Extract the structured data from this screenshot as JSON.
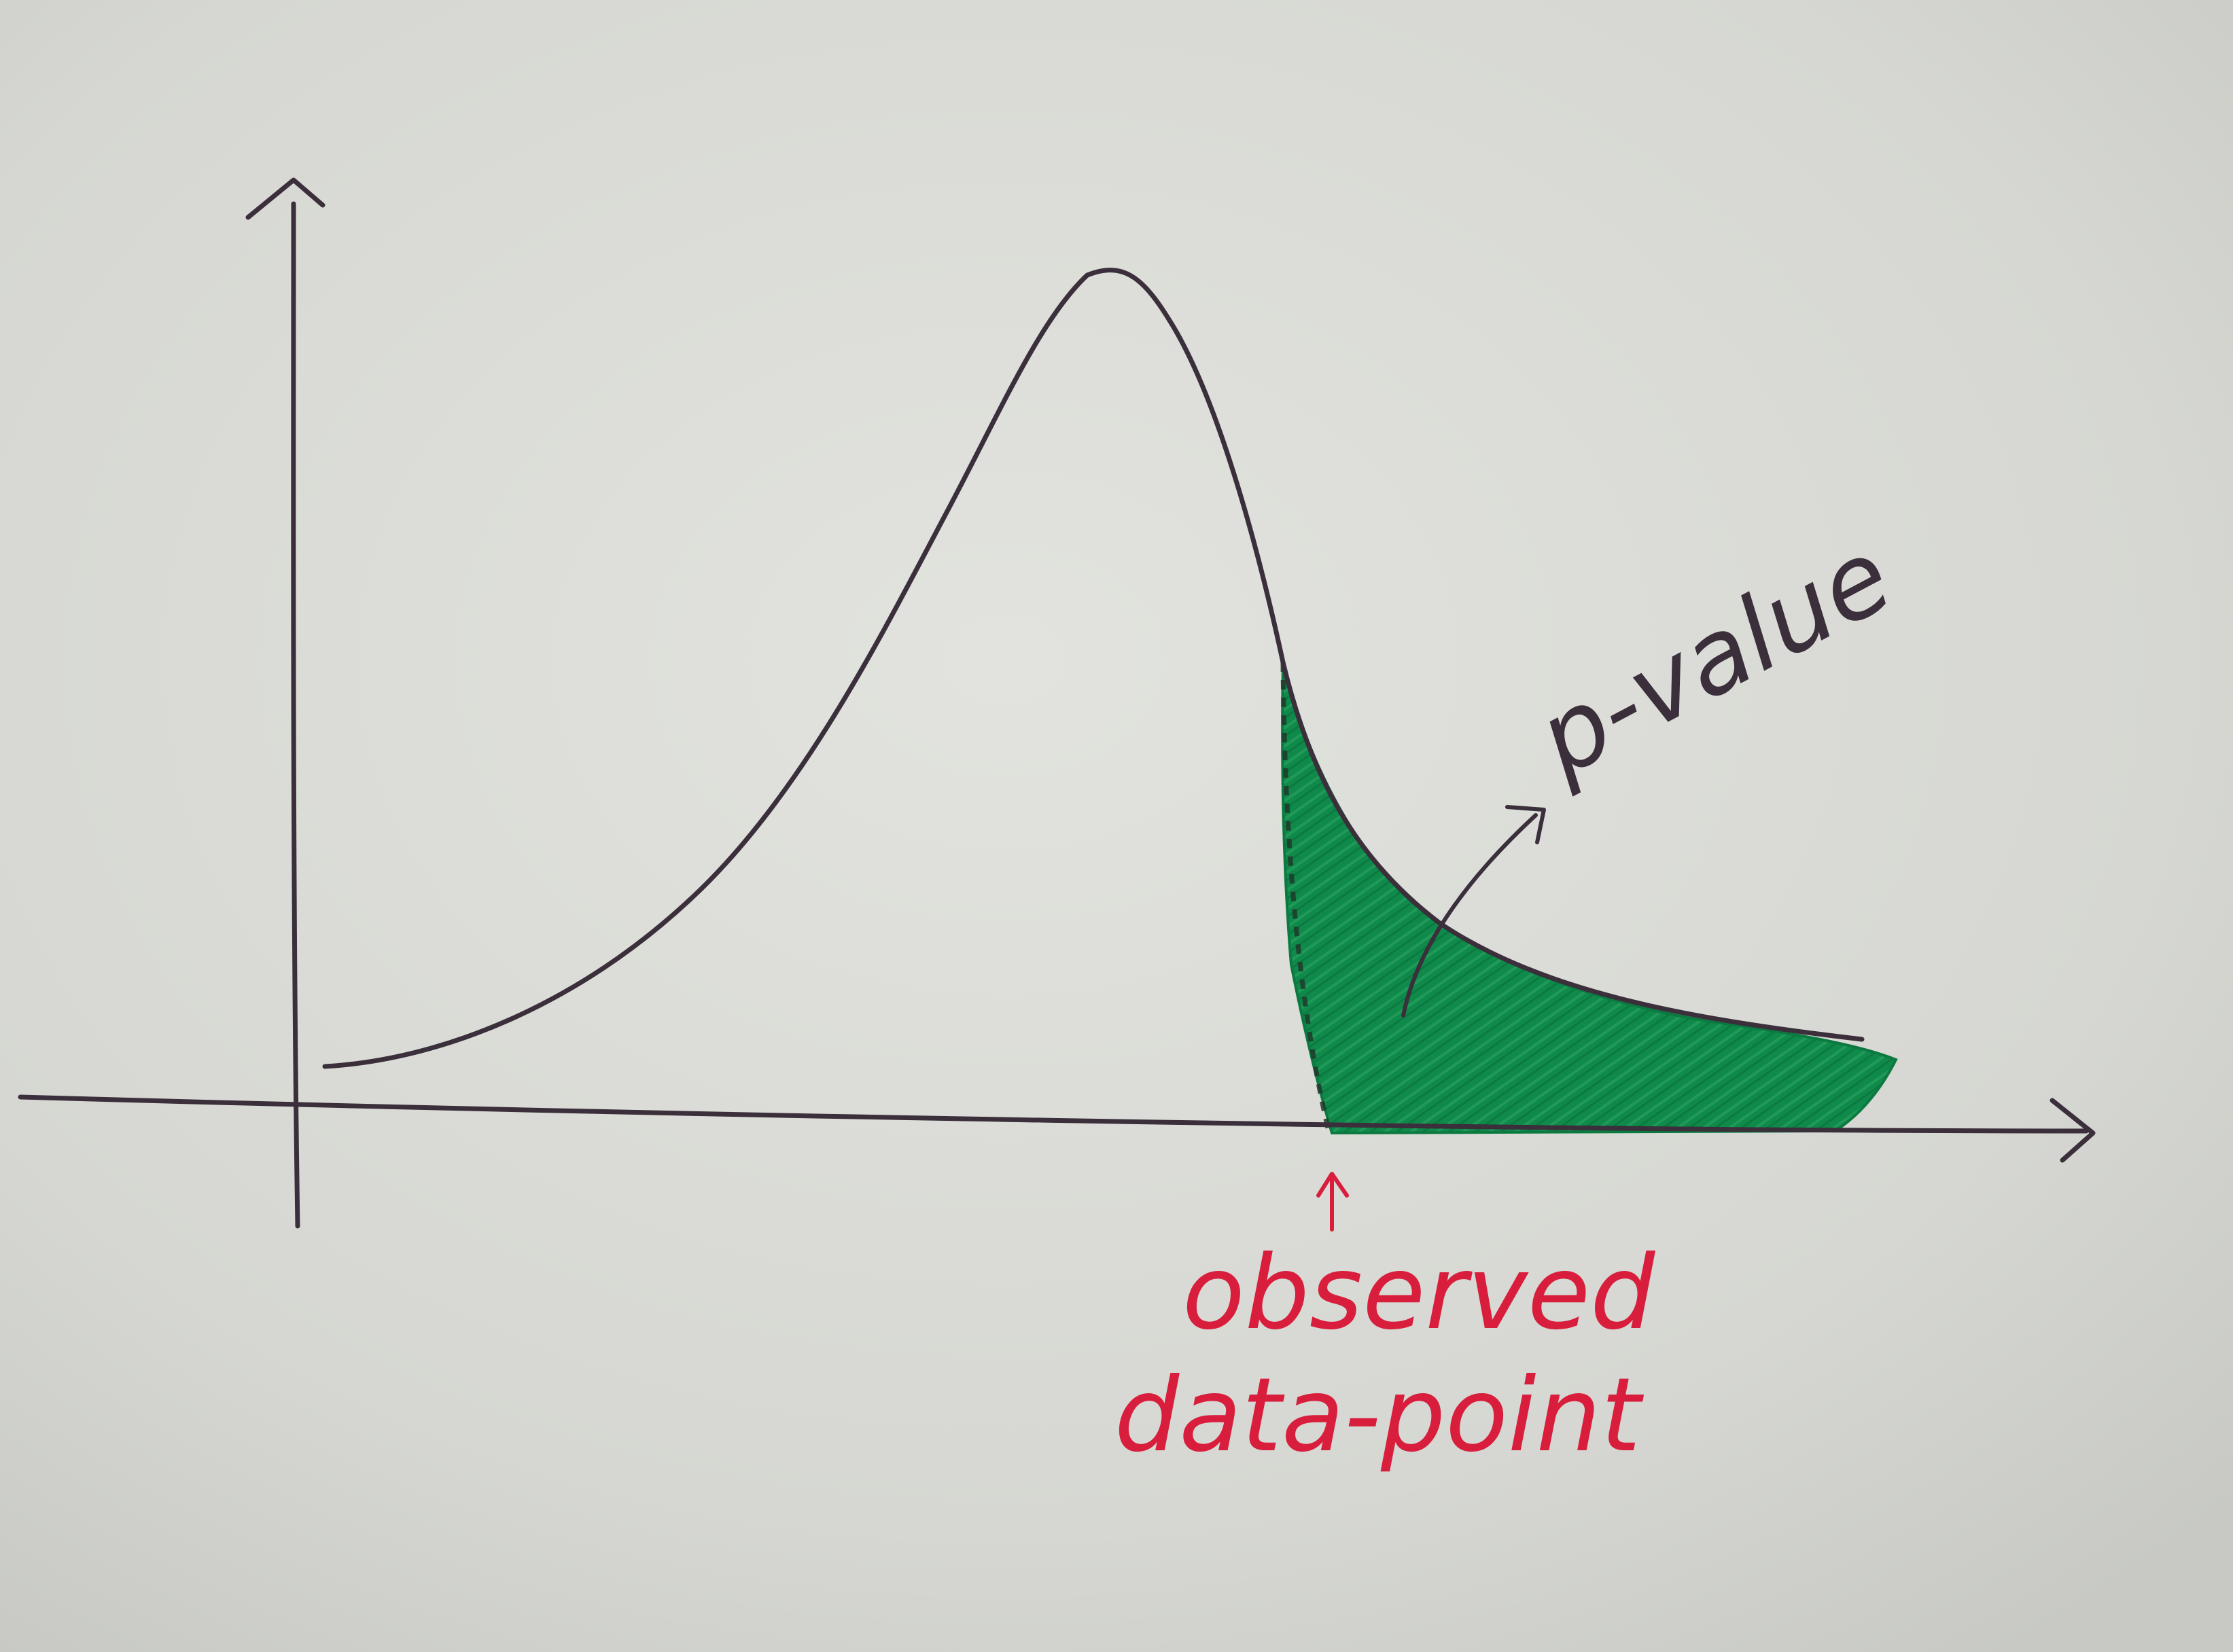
{
  "annotations": {
    "p_value": "p-value",
    "observed_line1": "observed",
    "observed_line2": "data-point"
  },
  "colors": {
    "paper": "#dcddd8",
    "ink": "#3a2f3a",
    "shade": "#0f8a4a",
    "red_ink": "#d81e3c"
  },
  "icons": [
    "x-axis-arrow-icon",
    "y-axis-arrow-icon",
    "observed-arrow-icon",
    "p-value-arrow-icon"
  ]
}
